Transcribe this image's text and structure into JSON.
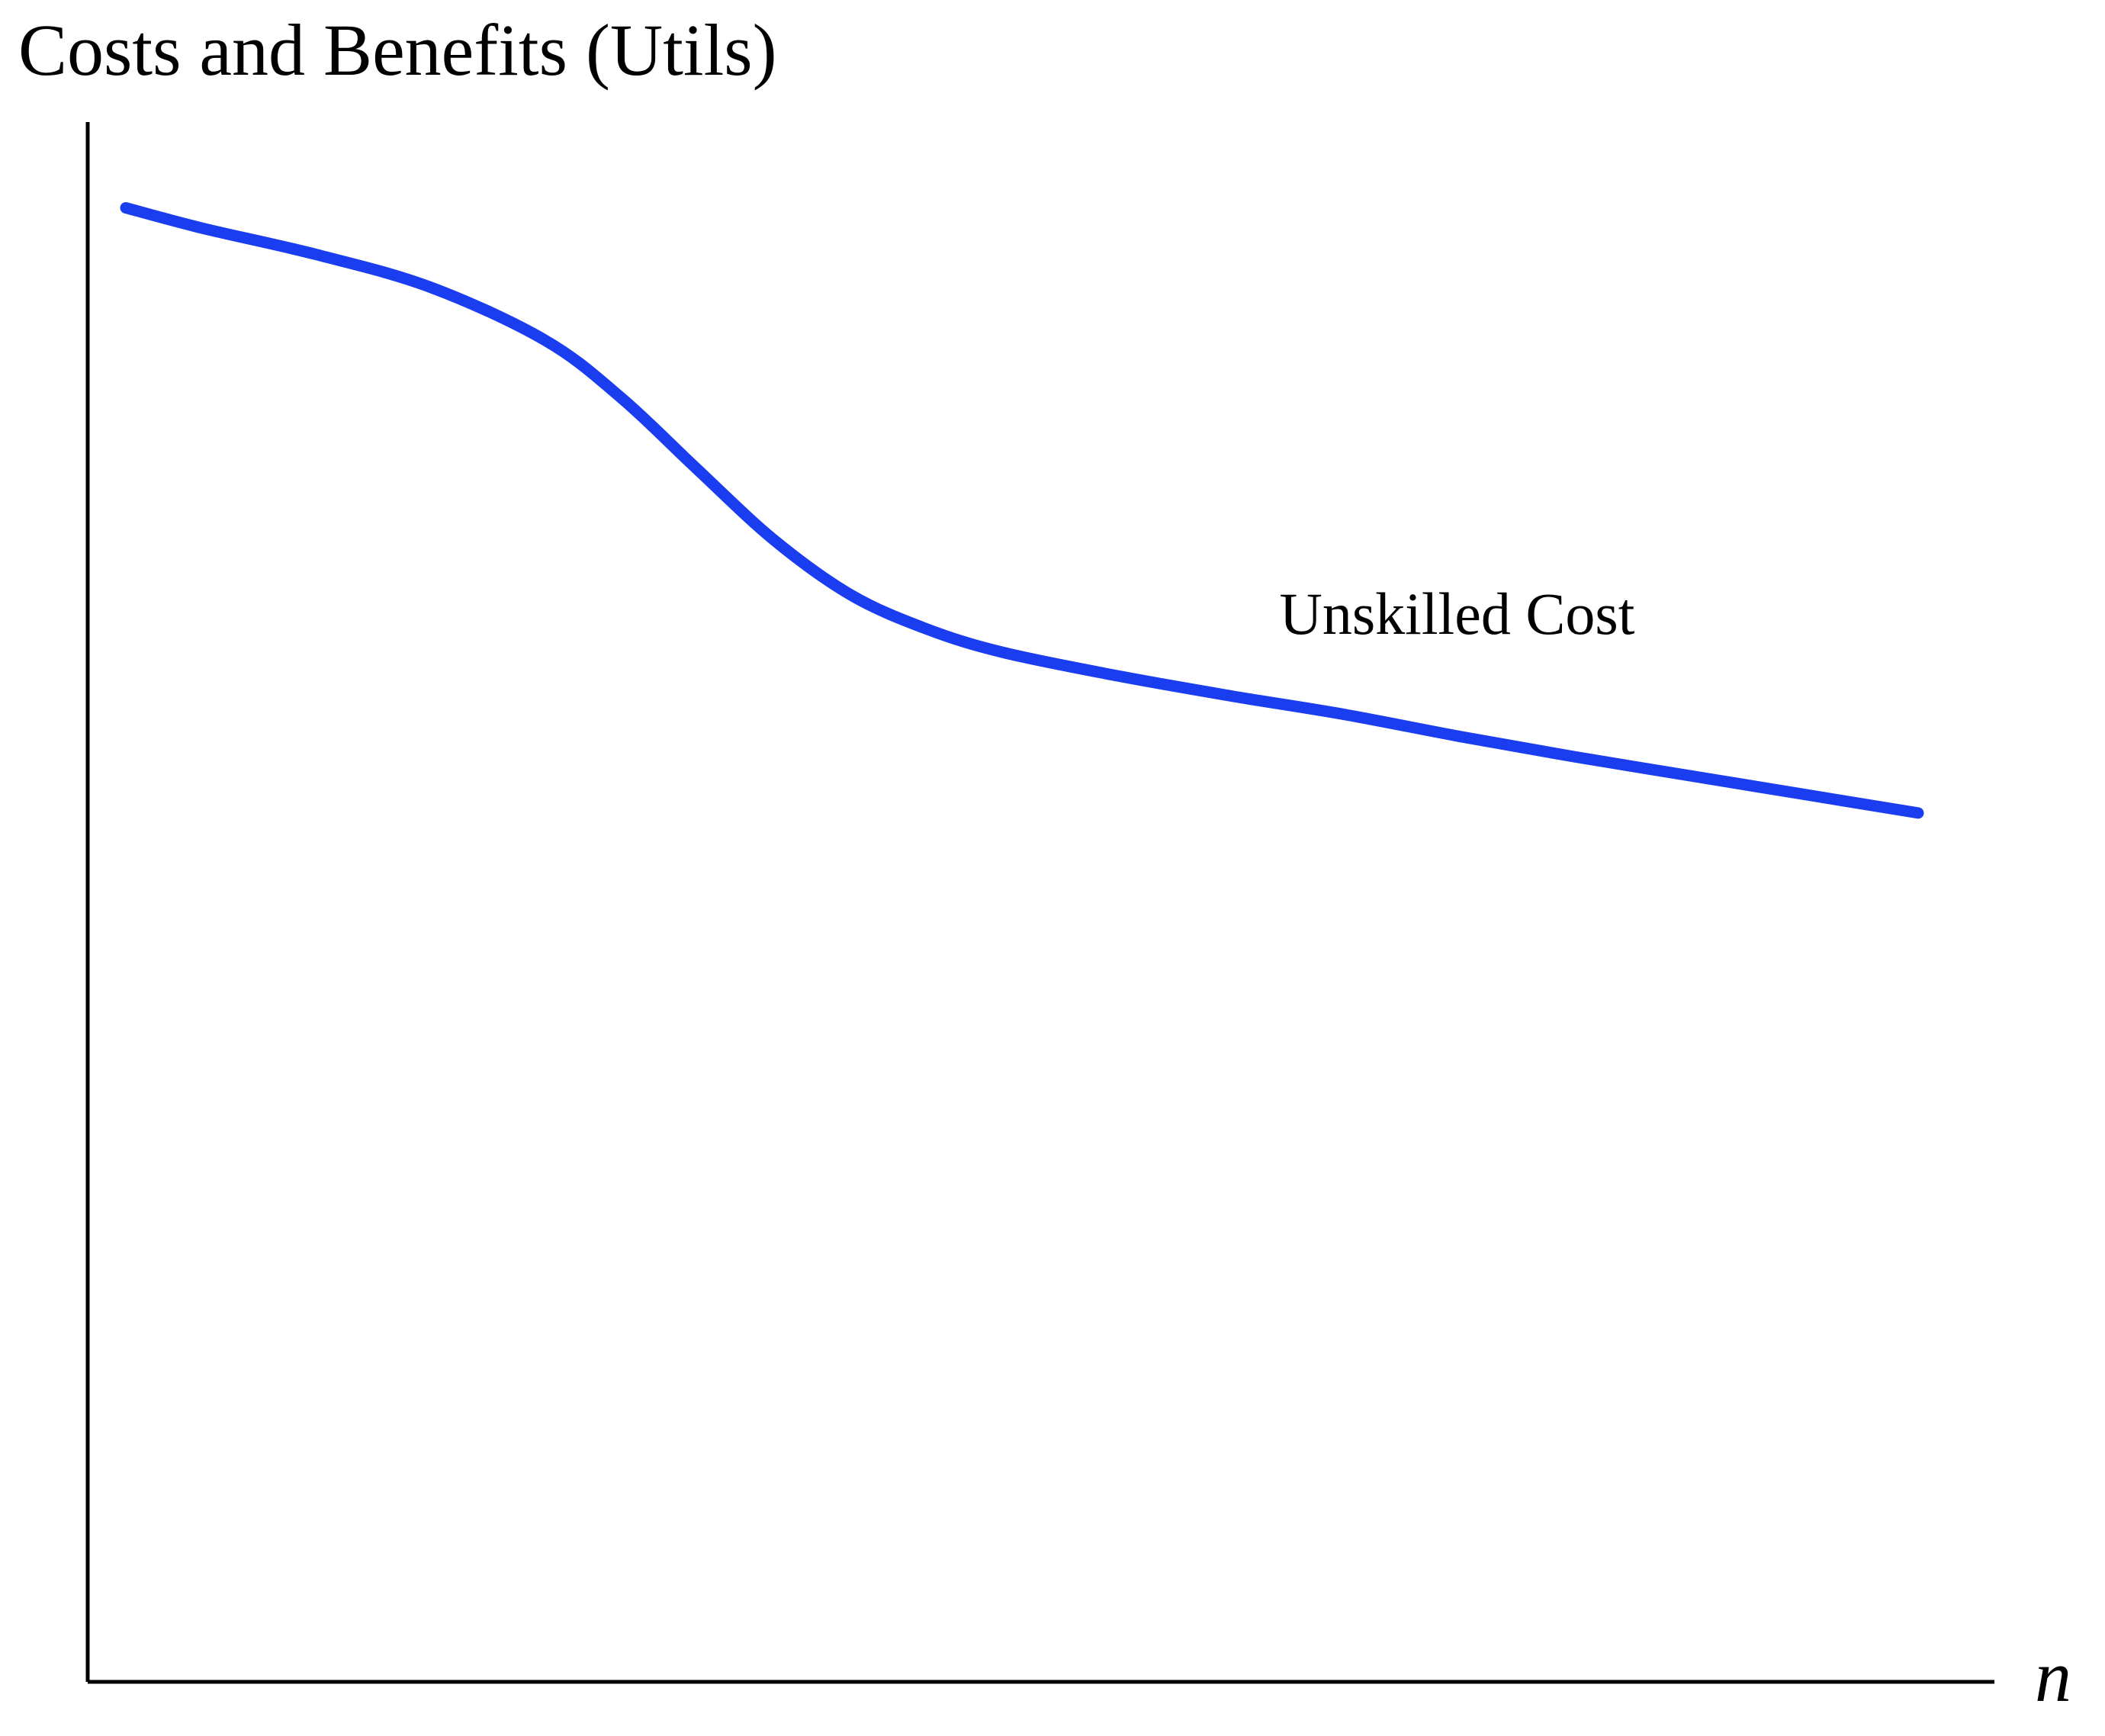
{
  "chart_data": {
    "type": "line",
    "title": "Costs and Benefits (Utils)",
    "xlabel": "n",
    "ylabel": "",
    "xlim": [
      0,
      100
    ],
    "ylim": [
      0,
      100
    ],
    "grid": false,
    "legend": "none",
    "ticks": "none",
    "series": [
      {
        "name": "Unskilled Cost",
        "color": "#1a3df0",
        "x": [
          2,
          6,
          12,
          18,
          24,
          28,
          32,
          36,
          40,
          44,
          48,
          54,
          60,
          66,
          72,
          78,
          84,
          90,
          96
        ],
        "y": [
          94.5,
          93.2,
          91.5,
          89.4,
          86,
          82.3,
          77.7,
          73.2,
          69.7,
          67.5,
          66,
          64.5,
          63.2,
          62,
          60.6,
          59.3,
          58.1,
          56.9,
          55.7
        ]
      }
    ]
  }
}
